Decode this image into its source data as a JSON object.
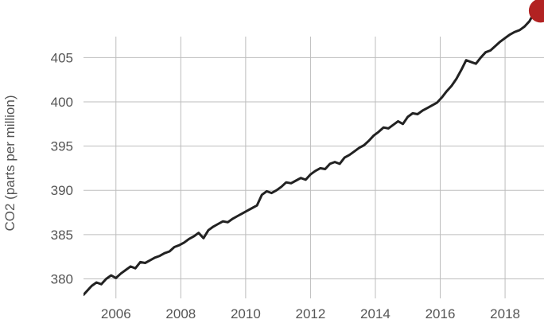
{
  "chart_data": {
    "type": "line",
    "title": "",
    "xlabel": "",
    "ylabel": "CO2 (parts per million)",
    "xlim": [
      2005.0,
      2019.2
    ],
    "ylim": [
      377.8,
      411.5
    ],
    "x_ticks": [
      "2006",
      "2008",
      "2010",
      "2012",
      "2014",
      "2016",
      "2018"
    ],
    "y_ticks": [
      "380",
      "385",
      "390",
      "395",
      "400",
      "405"
    ],
    "grid": true,
    "line_color": "#222222",
    "marker_color": "#b22222",
    "series": [
      {
        "name": "",
        "x": [
          2005.0,
          2005.25,
          2005.4,
          2005.55,
          2005.7,
          2005.85,
          2006.0,
          2006.15,
          2006.3,
          2006.45,
          2006.6,
          2006.75,
          2006.9,
          2007.05,
          2007.2,
          2007.35,
          2007.5,
          2007.65,
          2007.8,
          2007.95,
          2008.1,
          2008.25,
          2008.4,
          2008.55,
          2008.7,
          2008.85,
          2009.0,
          2009.15,
          2009.3,
          2009.45,
          2009.6,
          2009.75,
          2009.9,
          2010.05,
          2010.2,
          2010.35,
          2010.5,
          2010.65,
          2010.8,
          2010.95,
          2011.1,
          2011.25,
          2011.4,
          2011.55,
          2011.7,
          2011.85,
          2012.0,
          2012.15,
          2012.3,
          2012.45,
          2012.6,
          2012.75,
          2012.9,
          2013.05,
          2013.2,
          2013.35,
          2013.5,
          2013.65,
          2013.8,
          2013.95,
          2014.1,
          2014.25,
          2014.4,
          2014.55,
          2014.7,
          2014.85,
          2015.0,
          2015.15,
          2015.3,
          2015.45,
          2015.6,
          2015.75,
          2015.9,
          2016.05,
          2016.2,
          2016.35,
          2016.5,
          2016.65,
          2016.8,
          2016.95,
          2017.1,
          2017.25,
          2017.4,
          2017.55,
          2017.7,
          2017.85,
          2018.0,
          2018.15,
          2018.3,
          2018.45,
          2018.6,
          2018.75,
          2018.9
        ],
        "y": [
          378.2,
          379.2,
          379.6,
          379.4,
          380.0,
          380.4,
          380.1,
          380.6,
          381.0,
          381.4,
          381.2,
          381.9,
          381.8,
          382.1,
          382.4,
          382.6,
          382.9,
          383.1,
          383.6,
          383.8,
          384.1,
          384.5,
          384.8,
          385.2,
          384.6,
          385.5,
          385.9,
          386.2,
          386.5,
          386.4,
          386.8,
          387.1,
          387.4,
          387.7,
          388.0,
          388.3,
          389.5,
          389.9,
          389.7,
          390.0,
          390.4,
          390.9,
          390.8,
          391.1,
          391.4,
          391.2,
          391.8,
          392.2,
          392.5,
          392.4,
          393.0,
          393.2,
          393.0,
          393.7,
          394.0,
          394.4,
          394.8,
          395.1,
          395.6,
          396.2,
          396.6,
          397.1,
          397.0,
          397.4,
          397.8,
          397.5,
          398.3,
          398.7,
          398.6,
          399.0,
          399.3,
          399.6,
          399.9,
          400.5,
          401.2,
          401.8,
          402.6,
          403.6,
          404.7,
          404.5,
          404.3,
          405.0,
          405.6,
          405.8,
          406.3,
          406.8,
          407.2,
          407.6,
          407.9,
          408.1,
          408.5,
          409.1,
          410.1
        ]
      }
    ],
    "highlight_point": {
      "x": 2019.1,
      "y": 410.3
    }
  }
}
